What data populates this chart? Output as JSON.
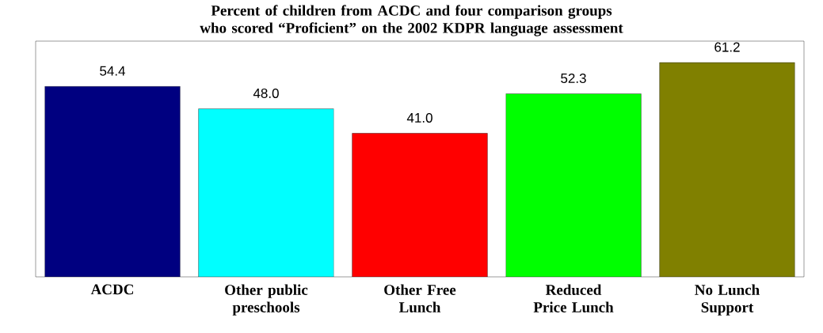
{
  "chart_data": {
    "type": "bar",
    "title": "Percent of children from ACDC and four comparison groups who scored “Proficient” on the 2002 KDPR language assessment",
    "categories": [
      "ACDC",
      "Other public preschools",
      "Other Free Lunch",
      "Reduced Price Lunch",
      "No Lunch Support"
    ],
    "values": [
      54.4,
      48.0,
      41.0,
      52.3,
      61.2
    ],
    "colors": [
      "#000080",
      "#00ffff",
      "#ff0000",
      "#00ff00",
      "#808000"
    ],
    "value_labels": [
      "54.4",
      "48.0",
      "41.0",
      "52.3",
      "61.2"
    ]
  }
}
